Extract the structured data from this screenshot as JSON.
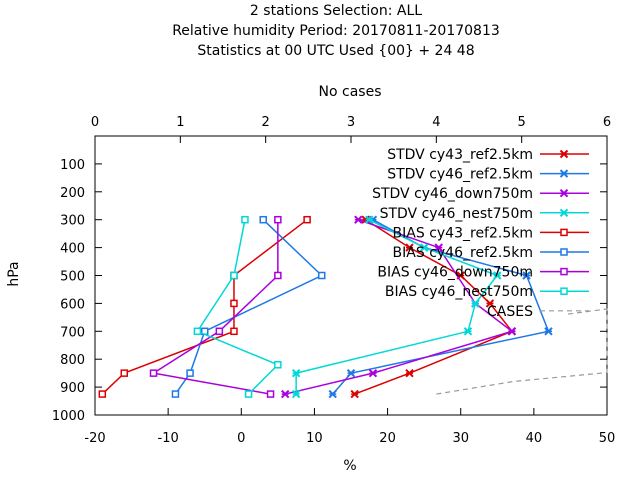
{
  "title_lines": [
    "2 stations Selection: ALL",
    "Relative humidity  Period: 20170811-20170813",
    "Statistics at 00 UTC  Used {00} + 24 48"
  ],
  "chart_data": {
    "type": "line",
    "xlabel": "%",
    "ylabel": "hPa",
    "x2label": "No cases",
    "xlim": [
      -20,
      50
    ],
    "ylim": [
      1000,
      0
    ],
    "x2lim": [
      0,
      6
    ],
    "xticks": [
      -20,
      -10,
      0,
      10,
      20,
      30,
      40,
      50
    ],
    "yticks": [
      100,
      200,
      300,
      400,
      500,
      600,
      700,
      800,
      900,
      1000
    ],
    "x2ticks": [
      0,
      1,
      2,
      3,
      4,
      5,
      6
    ],
    "legend_position": "top-right",
    "series": [
      {
        "name": "STDV cy43_ref2.5km",
        "color": "#dd0000",
        "marker": "x",
        "points": [
          [
            15.5,
            925
          ],
          [
            23,
            850
          ],
          [
            37,
            700
          ],
          [
            34,
            600
          ],
          [
            30,
            500
          ],
          [
            23,
            400
          ],
          [
            17,
            300
          ]
        ]
      },
      {
        "name": "STDV cy46_ref2.5km",
        "color": "#1e78e6",
        "marker": "x",
        "points": [
          [
            12.5,
            925
          ],
          [
            15,
            850
          ],
          [
            42,
            700
          ],
          [
            39,
            500
          ],
          [
            25,
            400
          ],
          [
            18,
            300
          ]
        ]
      },
      {
        "name": "STDV cy46_down750m",
        "color": "#aa00dd",
        "marker": "x",
        "points": [
          [
            6,
            925
          ],
          [
            18,
            850
          ],
          [
            37,
            700
          ],
          [
            32,
            600
          ],
          [
            27,
            400
          ],
          [
            16,
            300
          ]
        ]
      },
      {
        "name": "STDV cy46_nest750m",
        "color": "#00d8d8",
        "marker": "x",
        "points": [
          [
            7.5,
            925
          ],
          [
            7.5,
            850
          ],
          [
            31,
            700
          ],
          [
            32,
            600
          ],
          [
            35,
            500
          ],
          [
            25,
            400
          ],
          [
            17.5,
            300
          ]
        ]
      },
      {
        "name": "BIAS cy43_ref2.5km",
        "color": "#dd0000",
        "marker": "square",
        "points": [
          [
            -19,
            925
          ],
          [
            -16,
            850
          ],
          [
            -1,
            700
          ],
          [
            -1,
            600
          ],
          [
            -1,
            500
          ],
          [
            9,
            300
          ]
        ]
      },
      {
        "name": "BIAS cy46_ref2.5km",
        "color": "#1e78e6",
        "marker": "square",
        "points": [
          [
            -9,
            925
          ],
          [
            -7,
            850
          ],
          [
            -5,
            700
          ],
          [
            11,
            500
          ],
          [
            3,
            300
          ]
        ]
      },
      {
        "name": "BIAS cy46_down750m",
        "color": "#aa00dd",
        "marker": "square",
        "points": [
          [
            4,
            925
          ],
          [
            -12,
            850
          ],
          [
            -3,
            700
          ],
          [
            5,
            500
          ],
          [
            5,
            300
          ]
        ]
      },
      {
        "name": "BIAS cy46_nest750m",
        "color": "#00d8d8",
        "marker": "square",
        "points": [
          [
            1,
            925
          ],
          [
            5,
            820
          ],
          [
            -6,
            700
          ],
          [
            -1,
            500
          ],
          [
            0.5,
            300
          ]
        ]
      },
      {
        "name": "CASES",
        "color": "#999999",
        "marker": "none",
        "axis": "top",
        "dashed": true,
        "points": [
          [
            4,
            925
          ],
          [
            4.9,
            880
          ],
          [
            6,
            848
          ],
          [
            6,
            620
          ],
          [
            5.5,
            640
          ]
        ]
      }
    ]
  }
}
